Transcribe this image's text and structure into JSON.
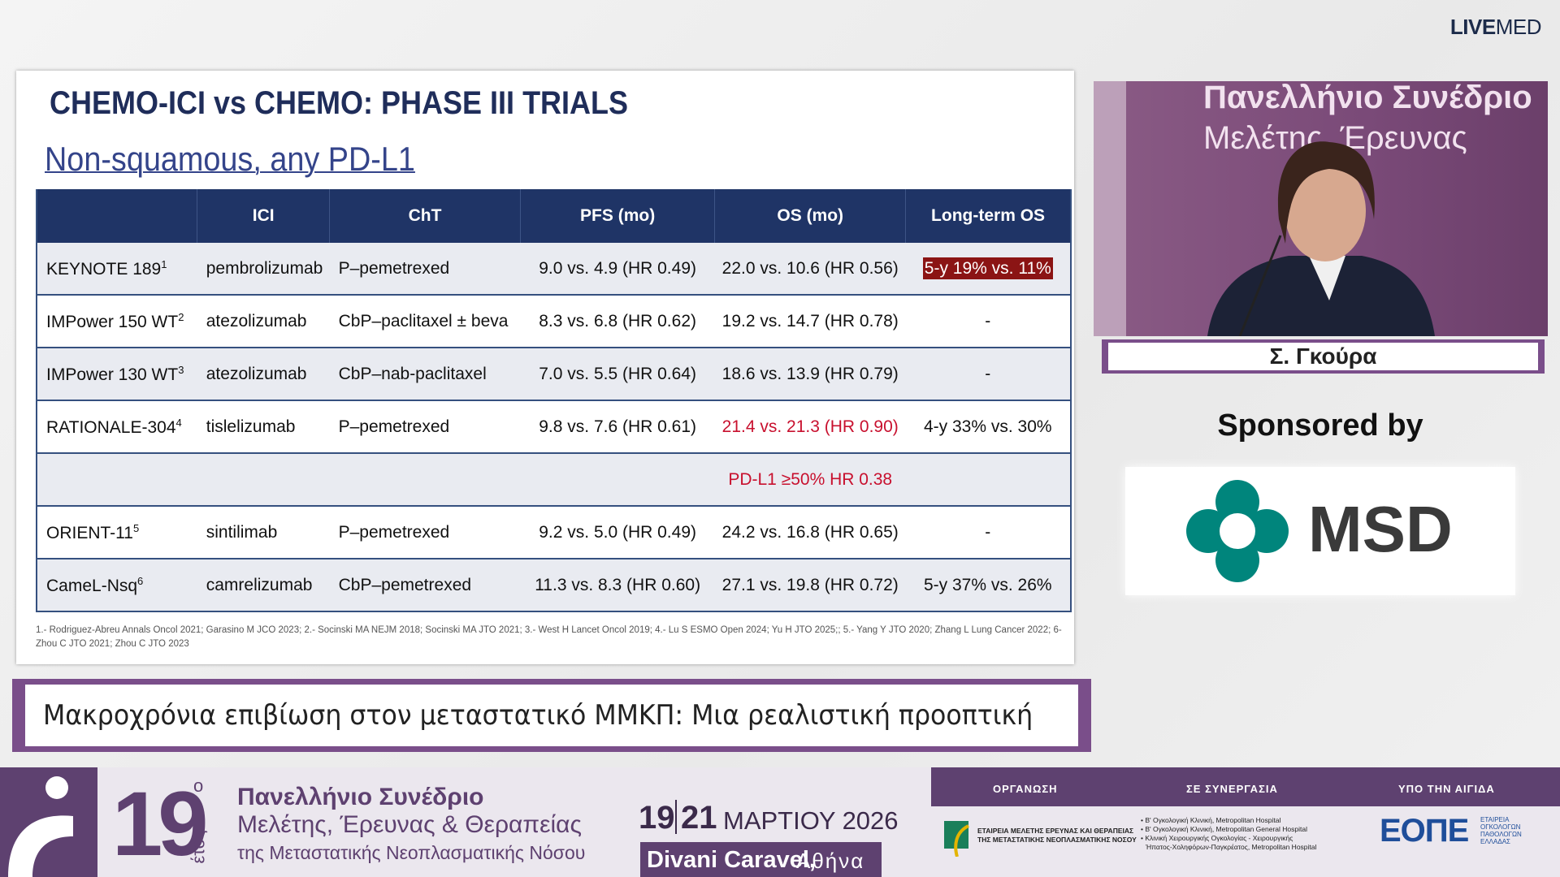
{
  "brand": {
    "live": "LIVE",
    "med": "MED"
  },
  "slide": {
    "title": "CHEMO-ICI vs CHEMO: PHASE III TRIALS",
    "subtitle": "Non-squamous, any PD-L1",
    "table": {
      "headers": [
        "ICI",
        "ChT",
        "PFS (mo)",
        "OS (mo)",
        "Long-term OS"
      ],
      "header_color": "#1f3466",
      "rows": [
        {
          "trial": "KEYNOTE 189",
          "ref": "1",
          "ici": "pembrolizumab",
          "cht": "P–pemetrexed",
          "pfs": "9.0 vs. 4.9 (HR 0.49)",
          "os": "22.0 vs. 10.6 (HR 0.56)",
          "long_term_os": "5-y 19% vs. 11%",
          "long_term_os_bg": "#8b1414",
          "long_term_os_color": "#ffffff"
        },
        {
          "trial": "IMPower 150 WT",
          "ref": "2",
          "ici": "atezolizumab",
          "cht": "CbP–paclitaxel ± beva",
          "pfs": "8.3 vs. 6.8 (HR 0.62)",
          "os": "19.2 vs. 14.7 (HR 0.78)",
          "long_term_os": "-"
        },
        {
          "trial": "IMPower 130 WT",
          "ref": "3",
          "ici": "atezolizumab",
          "cht": "CbP–nab-paclitaxel",
          "pfs": "7.0 vs. 5.5 (HR 0.64)",
          "os": "18.6 vs. 13.9 (HR 0.79)",
          "long_term_os": "-"
        },
        {
          "trial": "RATIONALE-304",
          "ref": "4",
          "ici": "tislelizumab",
          "cht": "P–pemetrexed",
          "pfs": "9.8 vs. 7.6 (HR 0.61)",
          "os": "21.4 vs. 21.3 (HR 0.90)",
          "os_color": "#c8102e",
          "long_term_os": "4-y 33% vs. 30%"
        },
        {
          "os": "PD-L1 ≥50% HR 0.38",
          "os_color": "#c8102e"
        },
        {
          "trial": "ORIENT-11",
          "ref": "5",
          "ici": "sintilimab",
          "cht": "P–pemetrexed",
          "pfs": "9.2 vs. 5.0 (HR 0.49)",
          "os": "24.2 vs. 16.8 (HR 0.65)",
          "long_term_os": "-"
        },
        {
          "trial": "CameL-Nsq",
          "ref": "6",
          "ici": "camrelizumab",
          "cht": "CbP–pemetrexed",
          "pfs": "11.3 vs. 8.3 (HR 0.60)",
          "os": "27.1 vs. 19.8 (HR 0.72)",
          "long_term_os": "5-y 37% vs. 26%"
        }
      ]
    },
    "footnote": "1.- Rodriguez-Abreu Annals Oncol 2021; Garasino M JCO 2023; 2.- Socinski MA NEJM 2018; Socinski MA JTO 2021; 3.- West H Lancet Oncol 2019; 4.- Lu S ESMO Open 2024; Yu H JTO 2025;; 5.- Yang Y JTO 2020; Zhang L Lung Cancer 2022; 6-Zhou C JTO 2021; Zhou C JTO 2023"
  },
  "banner": "Μακροχρόνια επιβίωση στον μεταστατικό ΜΜΚΠ: Μια ρεαλιστική προοπτική",
  "video": {
    "backdrop": [
      "Πανελλήνιο Συνέδριο",
      "Μελέτης, Έρευνας"
    ],
    "speaker": "Σ. Γκούρα"
  },
  "sponsor": {
    "label": "Sponsored by",
    "name": "MSD"
  },
  "footer": {
    "edition": "19",
    "edition_suffix": "ο",
    "edition_word": "έτος",
    "conference": [
      "Πανελλήνιο Συνέδριο",
      "Μελέτης, Έρευνας & Θεραπείας",
      "της Μεταστατικής Νεοπλασματικής Νόσου"
    ],
    "date_from": "19",
    "date_to": "21",
    "month_year": "ΜΑΡΤΙΟΥ 2026",
    "venue": "Divani Caravel,",
    "city": "Αθήνα",
    "organisation_heading": "ΟΡΓΑΝΩΣΗ",
    "organisation": [
      "ΕΤΑΙΡΕΙΑ ΜΕΛΕΤΗΣ ΕΡΕΥΝΑΣ ΚΑΙ ΘΕΡΑΠΕΙΑΣ",
      "ΤΗΣ ΜΕΤΑΣΤΑΤΙΚΗΣ ΝΕΟΠΛΑΣΜΑΤΙΚΗΣ ΝΟΣΟΥ"
    ],
    "collaboration_heading": "ΣΕ ΣΥΝΕΡΓΑΣΙΑ",
    "collaboration": [
      "• Β' Ογκολογική Κλινική, Metropolitan Hospital",
      "• Β' Ογκολογική Κλινική, Metropolitan General Hospital",
      "• Κλινική Χειρουργικής Ογκολογίας - Χειρουργικής",
      "Ήπατος-Χοληφόρων-Παγκρέατος, Metropolitan Hospital"
    ],
    "auspices_heading": "ΥΠΟ ΤΗΝ ΑΙΓΙΔΑ",
    "auspices_logo": "ΕΟΠΕ",
    "auspices": [
      "ΕΤΑΙΡΕΙΑ",
      "ΟΓΚΟΛΟΓΩΝ",
      "ΠΑΘΟΛΟΓΩΝ",
      "ΕΛΛΑΔΑΣ"
    ]
  }
}
